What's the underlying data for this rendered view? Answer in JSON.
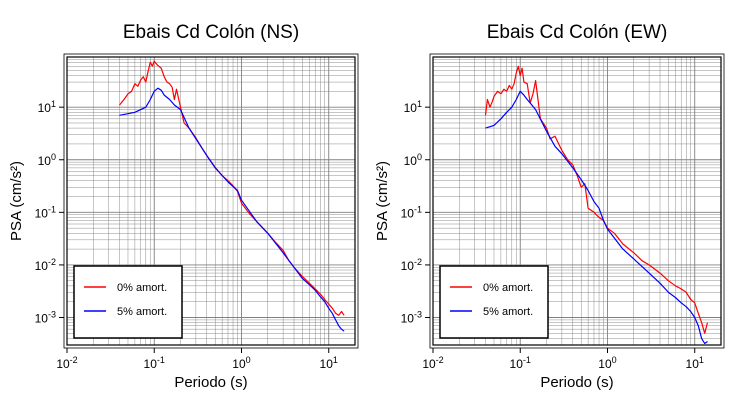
{
  "colors": {
    "series_0": "#ff0000",
    "series_5": "#0000ff",
    "frame": "#000000",
    "grid": "#808080"
  },
  "chart_data": [
    {
      "type": "line",
      "title": "Ebais Cd Colón (NS)",
      "xlabel": "Periodo (s)",
      "ylabel": "PSA (cm/s²)",
      "xscale": "log",
      "yscale": "log",
      "xlim": [
        0.01,
        20
      ],
      "ylim": [
        0.0003,
        90
      ],
      "xticks": [
        "10-2",
        "10-1",
        "100",
        "101"
      ],
      "yticks": [
        "10-3",
        "10-2",
        "10-1",
        "100",
        "101"
      ],
      "grid": true,
      "legend": "bottom-left",
      "series": [
        {
          "name": "0% amort.",
          "color": "#ff0000",
          "points": [
            [
              0.04,
              11
            ],
            [
              0.045,
              14
            ],
            [
              0.05,
              18
            ],
            [
              0.055,
              20
            ],
            [
              0.06,
              28
            ],
            [
              0.065,
              25
            ],
            [
              0.07,
              33
            ],
            [
              0.075,
              38
            ],
            [
              0.08,
              30
            ],
            [
              0.085,
              48
            ],
            [
              0.09,
              72
            ],
            [
              0.095,
              60
            ],
            [
              0.1,
              75
            ],
            [
              0.11,
              62
            ],
            [
              0.12,
              55
            ],
            [
              0.13,
              38
            ],
            [
              0.14,
              30
            ],
            [
              0.15,
              28
            ],
            [
              0.16,
              24
            ],
            [
              0.17,
              14
            ],
            [
              0.18,
              22
            ],
            [
              0.2,
              10
            ],
            [
              0.22,
              5
            ],
            [
              0.25,
              4
            ],
            [
              0.3,
              2.6
            ],
            [
              0.35,
              1.7
            ],
            [
              0.4,
              1.2
            ],
            [
              0.5,
              0.72
            ],
            [
              0.6,
              0.5
            ],
            [
              0.7,
              0.4
            ],
            [
              0.8,
              0.32
            ],
            [
              0.9,
              0.25
            ],
            [
              1.0,
              0.15
            ],
            [
              1.2,
              0.1
            ],
            [
              1.5,
              0.066
            ],
            [
              2,
              0.04
            ],
            [
              2.5,
              0.026
            ],
            [
              3,
              0.019
            ],
            [
              3.5,
              0.012
            ],
            [
              4,
              0.009
            ],
            [
              5,
              0.006
            ],
            [
              6,
              0.0045
            ],
            [
              7,
              0.0035
            ],
            [
              8,
              0.0028
            ],
            [
              9,
              0.0022
            ],
            [
              10,
              0.0018
            ],
            [
              11,
              0.0015
            ],
            [
              12,
              0.0012
            ],
            [
              13,
              0.0011
            ],
            [
              14,
              0.0013
            ],
            [
              15,
              0.0011
            ]
          ]
        },
        {
          "name": "5% amort.",
          "color": "#0000ff",
          "points": [
            [
              0.04,
              7
            ],
            [
              0.05,
              7.5
            ],
            [
              0.06,
              8
            ],
            [
              0.07,
              9
            ],
            [
              0.08,
              10
            ],
            [
              0.09,
              14
            ],
            [
              0.1,
              20
            ],
            [
              0.11,
              23
            ],
            [
              0.12,
              21
            ],
            [
              0.13,
              17
            ],
            [
              0.15,
              14
            ],
            [
              0.17,
              11
            ],
            [
              0.2,
              9
            ],
            [
              0.25,
              4
            ],
            [
              0.3,
              2.5
            ],
            [
              0.4,
              1.2
            ],
            [
              0.5,
              0.7
            ],
            [
              0.7,
              0.38
            ],
            [
              0.9,
              0.26
            ],
            [
              1.0,
              0.17
            ],
            [
              1.5,
              0.066
            ],
            [
              2,
              0.04
            ],
            [
              3,
              0.017
            ],
            [
              4,
              0.009
            ],
            [
              5,
              0.0055
            ],
            [
              6,
              0.0042
            ],
            [
              7,
              0.0033
            ],
            [
              8,
              0.0025
            ],
            [
              9,
              0.002
            ],
            [
              10,
              0.0015
            ],
            [
              11,
              0.0012
            ],
            [
              12,
              0.0009
            ],
            [
              13,
              0.0007
            ],
            [
              14,
              0.0006
            ],
            [
              15,
              0.00055
            ]
          ]
        }
      ]
    },
    {
      "type": "line",
      "title": "Ebais Cd Colón (EW)",
      "xlabel": "Periodo (s)",
      "ylabel": "PSA (cm/s²)",
      "xscale": "log",
      "yscale": "log",
      "xlim": [
        0.01,
        20
      ],
      "ylim": [
        0.0003,
        90
      ],
      "xticks": [
        "10-2",
        "10-1",
        "100",
        "101"
      ],
      "yticks": [
        "10-3",
        "10-2",
        "10-1",
        "100",
        "101"
      ],
      "grid": true,
      "legend": "bottom-left",
      "series": [
        {
          "name": "0% amort.",
          "color": "#ff0000",
          "points": [
            [
              0.04,
              7
            ],
            [
              0.042,
              14
            ],
            [
              0.045,
              10
            ],
            [
              0.048,
              13
            ],
            [
              0.05,
              16
            ],
            [
              0.055,
              20
            ],
            [
              0.06,
              18
            ],
            [
              0.065,
              22
            ],
            [
              0.07,
              20
            ],
            [
              0.075,
              26
            ],
            [
              0.08,
              22
            ],
            [
              0.085,
              28
            ],
            [
              0.09,
              45
            ],
            [
              0.095,
              60
            ],
            [
              0.1,
              40
            ],
            [
              0.105,
              55
            ],
            [
              0.11,
              30
            ],
            [
              0.12,
              28
            ],
            [
              0.13,
              12
            ],
            [
              0.14,
              18
            ],
            [
              0.15,
              32
            ],
            [
              0.17,
              6
            ],
            [
              0.2,
              4
            ],
            [
              0.22,
              2.5
            ],
            [
              0.25,
              2.8
            ],
            [
              0.3,
              1.5
            ],
            [
              0.35,
              1.0
            ],
            [
              0.4,
              0.8
            ],
            [
              0.45,
              0.5
            ],
            [
              0.5,
              0.3
            ],
            [
              0.55,
              0.35
            ],
            [
              0.6,
              0.12
            ],
            [
              0.7,
              0.1
            ],
            [
              0.8,
              0.08
            ],
            [
              0.9,
              0.07
            ],
            [
              1.0,
              0.05
            ],
            [
              1.2,
              0.04
            ],
            [
              1.5,
              0.025
            ],
            [
              2,
              0.017
            ],
            [
              2.5,
              0.012
            ],
            [
              3,
              0.01
            ],
            [
              4,
              0.007
            ],
            [
              5,
              0.005
            ],
            [
              6,
              0.004
            ],
            [
              7,
              0.0035
            ],
            [
              8,
              0.003
            ],
            [
              9,
              0.0022
            ],
            [
              10,
              0.0019
            ],
            [
              11,
              0.0012
            ],
            [
              12,
              0.0008
            ],
            [
              13,
              0.0005
            ],
            [
              14,
              0.0008
            ]
          ]
        },
        {
          "name": "5% amort.",
          "color": "#0000ff",
          "points": [
            [
              0.04,
              4
            ],
            [
              0.05,
              4.5
            ],
            [
              0.06,
              6
            ],
            [
              0.07,
              8
            ],
            [
              0.08,
              10
            ],
            [
              0.09,
              14
            ],
            [
              0.1,
              20
            ],
            [
              0.11,
              17
            ],
            [
              0.12,
              14
            ],
            [
              0.13,
              12
            ],
            [
              0.15,
              9
            ],
            [
              0.2,
              3.5
            ],
            [
              0.25,
              1.8
            ],
            [
              0.3,
              1.3
            ],
            [
              0.4,
              0.7
            ],
            [
              0.5,
              0.42
            ],
            [
              0.6,
              0.26
            ],
            [
              0.7,
              0.16
            ],
            [
              0.8,
              0.12
            ],
            [
              0.9,
              0.07
            ],
            [
              1.0,
              0.048
            ],
            [
              1.5,
              0.02
            ],
            [
              2,
              0.013
            ],
            [
              3,
              0.007
            ],
            [
              4,
              0.0045
            ],
            [
              5,
              0.003
            ],
            [
              6,
              0.0024
            ],
            [
              7,
              0.0019
            ],
            [
              8,
              0.0016
            ],
            [
              9,
              0.0013
            ],
            [
              10,
              0.001
            ],
            [
              11,
              0.0007
            ],
            [
              12,
              0.0004
            ],
            [
              13,
              0.00032
            ],
            [
              14,
              0.00035
            ]
          ]
        }
      ]
    }
  ]
}
